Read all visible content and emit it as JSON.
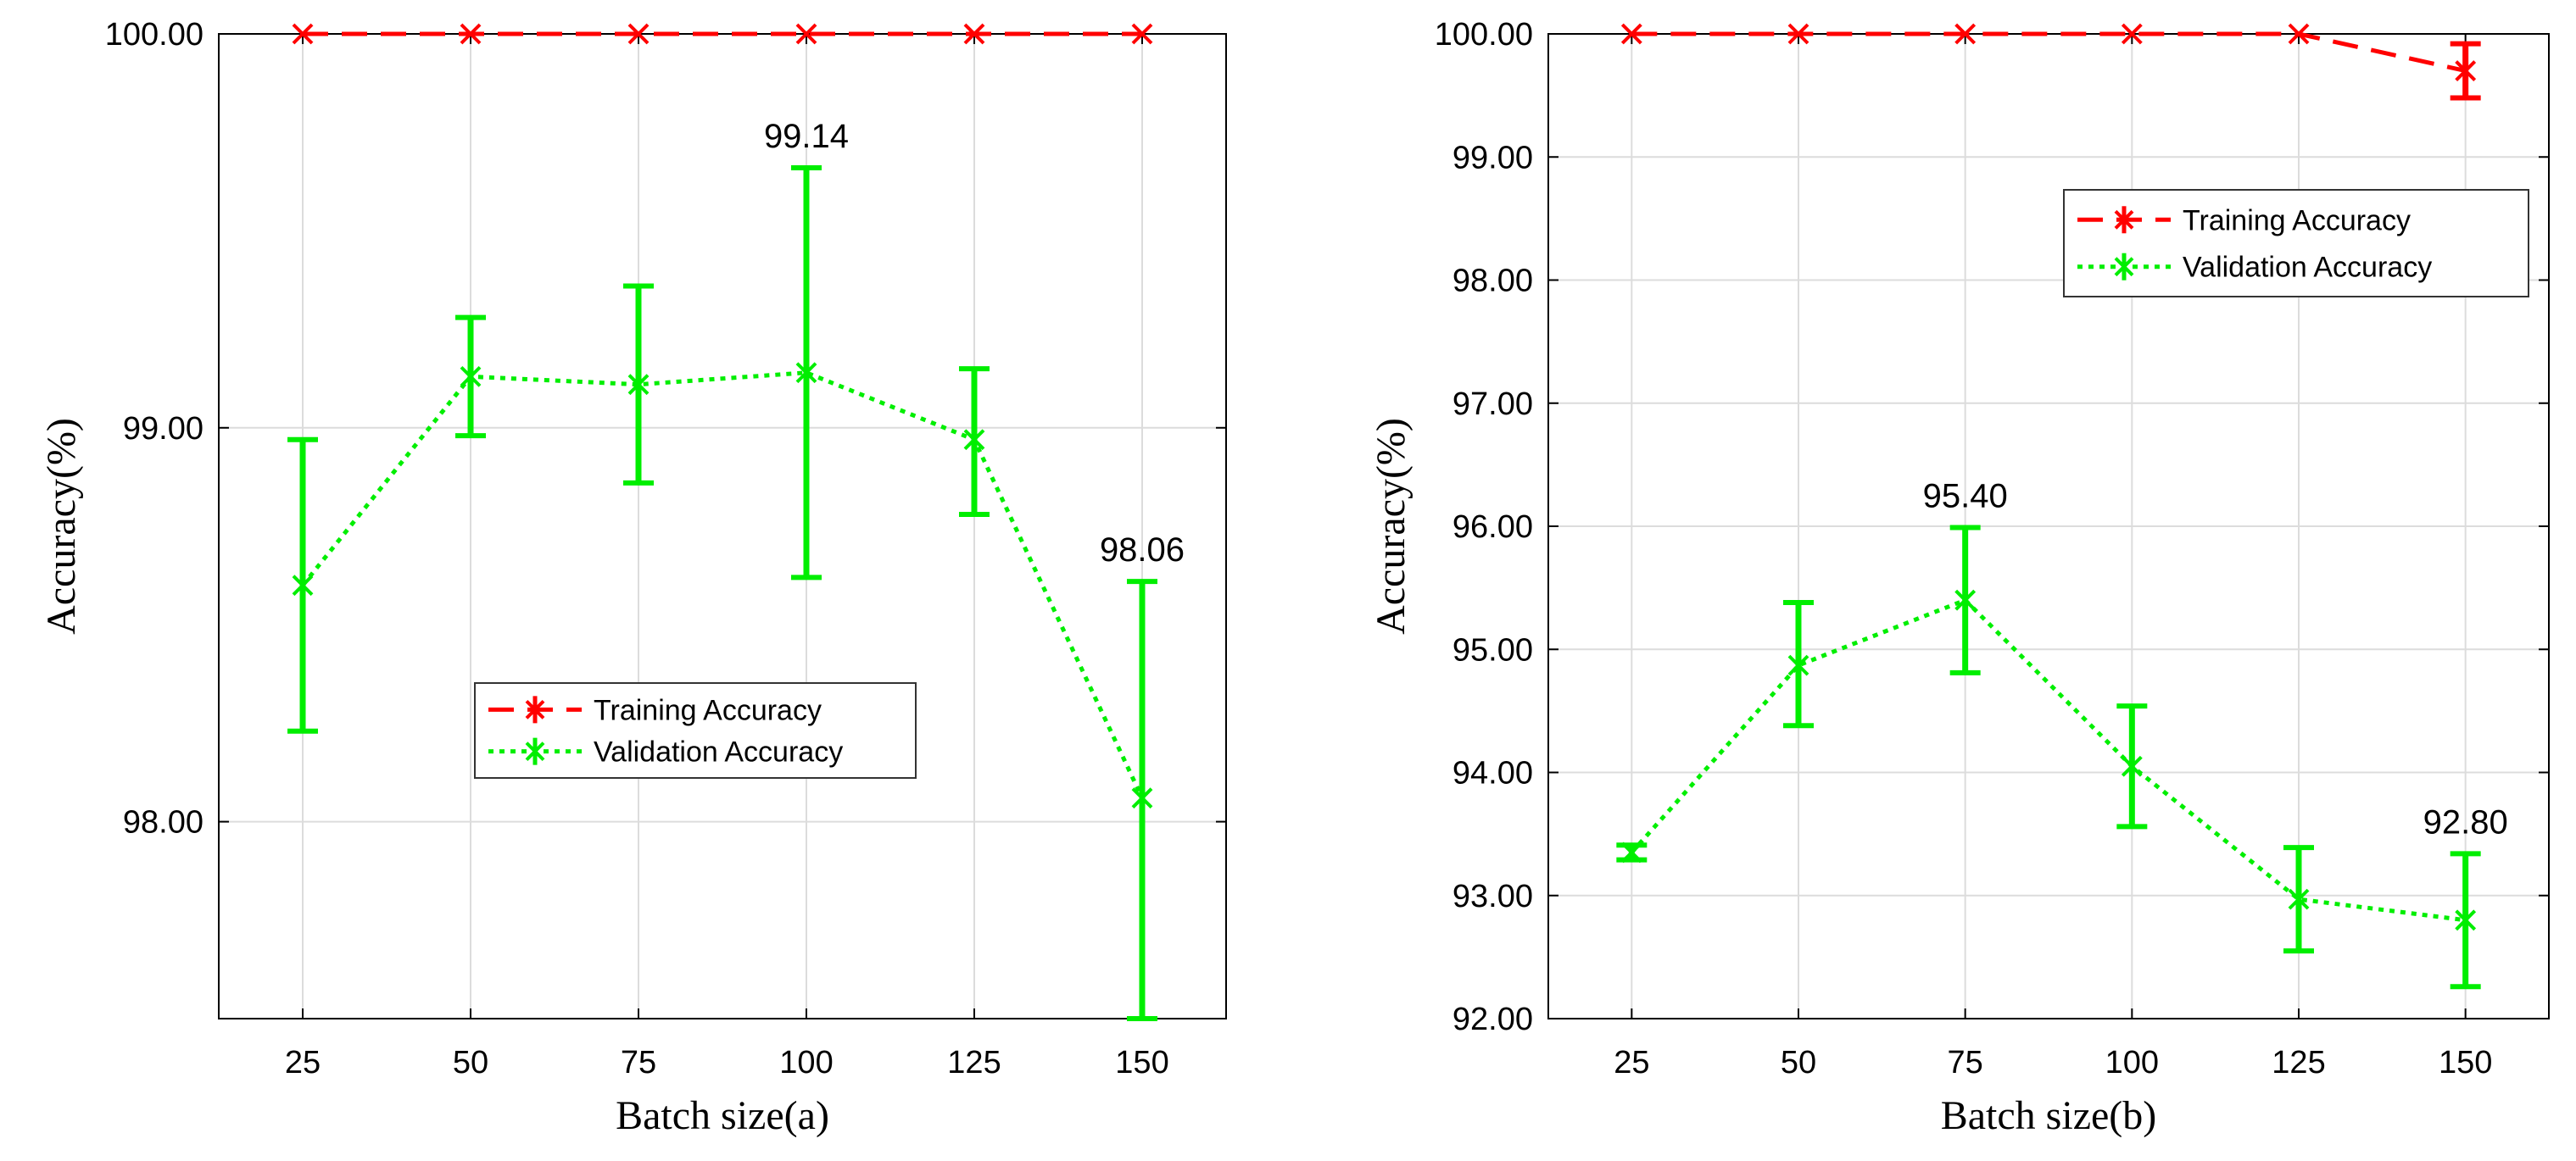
{
  "figure": {
    "colors": {
      "training": "#ff0000",
      "validation": "#00ee00",
      "grid": "#dcdcdc",
      "axis": "#000000"
    }
  },
  "chart_data": [
    {
      "type": "line",
      "xlabel": "Batch size(a)",
      "ylabel": "Accuracy(%)",
      "x": [
        25,
        50,
        75,
        100,
        125,
        150
      ],
      "x_ticks": [
        "25",
        "50",
        "75",
        "100",
        "125",
        "150"
      ],
      "y_ticks": [
        "98.00",
        "99.00",
        "100.00"
      ],
      "xlim": [
        12.5,
        162.5
      ],
      "ylim": [
        97.5,
        100.0
      ],
      "grid": true,
      "legend_position": "center-right",
      "series": [
        {
          "name": "Training Accuracy",
          "style": "dashed",
          "marker": "x",
          "color": "#ff0000",
          "values": [
            100.0,
            100.0,
            100.0,
            100.0,
            100.0,
            100.0
          ],
          "err_low": [
            100.0,
            100.0,
            100.0,
            100.0,
            100.0,
            100.0
          ],
          "err_high": [
            100.0,
            100.0,
            100.0,
            100.0,
            100.0,
            100.0
          ]
        },
        {
          "name": "Validation Accuracy",
          "style": "dotted",
          "marker": "x",
          "color": "#00ee00",
          "values": [
            98.6,
            99.13,
            99.11,
            99.14,
            98.97,
            98.06
          ],
          "err_low": [
            98.23,
            98.98,
            98.86,
            98.62,
            98.78,
            97.5
          ],
          "err_high": [
            98.97,
            99.28,
            99.36,
            99.66,
            99.15,
            98.61
          ]
        }
      ],
      "annotations": [
        {
          "text": "99.14",
          "x": 100,
          "y": 99.14
        },
        {
          "text": "98.06",
          "x": 150,
          "y": 98.06
        }
      ]
    },
    {
      "type": "line",
      "xlabel": "Batch size(b)",
      "ylabel": "Accuracy(%)",
      "x": [
        25,
        50,
        75,
        100,
        125,
        150
      ],
      "x_ticks": [
        "25",
        "50",
        "75",
        "100",
        "125",
        "150"
      ],
      "y_ticks": [
        "92.00",
        "93.00",
        "94.00",
        "95.00",
        "96.00",
        "97.00",
        "98.00",
        "99.00",
        "100.00"
      ],
      "xlim": [
        12.5,
        162.5
      ],
      "ylim": [
        92.0,
        100.0
      ],
      "grid": true,
      "legend_position": "top-right",
      "series": [
        {
          "name": "Training Accuracy",
          "style": "dashed",
          "marker": "x",
          "color": "#ff0000",
          "values": [
            100.0,
            100.0,
            100.0,
            100.0,
            100.0,
            99.7
          ],
          "err_low": [
            100.0,
            100.0,
            100.0,
            100.0,
            100.0,
            99.48
          ],
          "err_high": [
            100.0,
            100.0,
            100.0,
            100.0,
            100.0,
            99.92
          ]
        },
        {
          "name": "Validation Accuracy",
          "style": "dotted",
          "marker": "x",
          "color": "#00ee00",
          "values": [
            93.35,
            94.87,
            95.4,
            94.05,
            92.97,
            92.8
          ],
          "err_low": [
            93.29,
            94.38,
            94.81,
            93.56,
            92.55,
            92.26
          ],
          "err_high": [
            93.41,
            95.38,
            95.99,
            94.54,
            93.39,
            93.34
          ]
        }
      ],
      "annotations": [
        {
          "text": "95.40",
          "x": 75,
          "y": 95.4
        },
        {
          "text": "92.80",
          "x": 150,
          "y": 92.8
        }
      ]
    }
  ]
}
